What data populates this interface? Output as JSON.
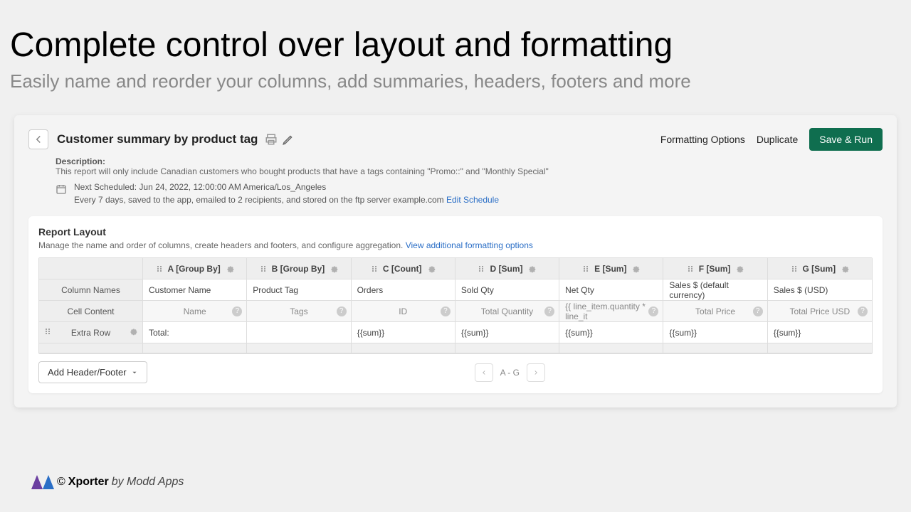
{
  "page": {
    "title": "Complete control over layout and formatting",
    "subtitle": "Easily name and reorder your columns, add summaries, headers, footers and more"
  },
  "header": {
    "reportTitle": "Customer summary by product tag",
    "formattingOptions": "Formatting Options",
    "duplicate": "Duplicate",
    "saveRun": "Save & Run"
  },
  "description": {
    "label": "Description:",
    "text": "This report will only include Canadian customers who bought products that have a tags containing \"Promo::\" and \"Monthly Special\""
  },
  "schedule": {
    "next": "Next Scheduled: Jun 24, 2022, 12:00:00 AM America/Los_Angeles",
    "recurrence": "Every 7 days, saved to the app, emailed to 2 recipients, and stored on the ftp server example.com",
    "editLink": "Edit Schedule"
  },
  "layout": {
    "title": "Report Layout",
    "desc": "Manage the name and order of columns, create headers and footers, and configure aggregation.",
    "viewMore": "View additional formatting options",
    "rowLabels": {
      "columnNames": "Column Names",
      "cellContent": "Cell Content",
      "extraRow": "Extra Row"
    },
    "columns": [
      {
        "hdr": "A [Group By]",
        "name": "Customer Name",
        "content": "Name",
        "extra": "Total:"
      },
      {
        "hdr": "B [Group By]",
        "name": "Product Tag",
        "content": "Tags",
        "extra": ""
      },
      {
        "hdr": "C [Count]",
        "name": "Orders",
        "content": "ID",
        "extra": "{{sum}}"
      },
      {
        "hdr": "D [Sum]",
        "name": "Sold Qty",
        "content": "Total Quantity",
        "extra": "{{sum}}"
      },
      {
        "hdr": "E [Sum]",
        "name": "Net Qty",
        "content": "{{ line_item.quantity * line_it",
        "extra": "{{sum}}"
      },
      {
        "hdr": "F [Sum]",
        "name": "Sales $ (default currency)",
        "content": "Total Price",
        "extra": "{{sum}}"
      },
      {
        "hdr": "G [Sum]",
        "name": "Sales $ (USD)",
        "content": "Total Price USD",
        "extra": "{{sum}}"
      }
    ],
    "addHeaderFooter": "Add Header/Footer",
    "pagerLabel": "A - G"
  },
  "footer": {
    "copyright": "©",
    "brand": "Xporter",
    "by": "by Modd Apps"
  },
  "colors": {
    "logoPurple": "#6b3fa0",
    "logoBlue": "#2a6ec6"
  }
}
